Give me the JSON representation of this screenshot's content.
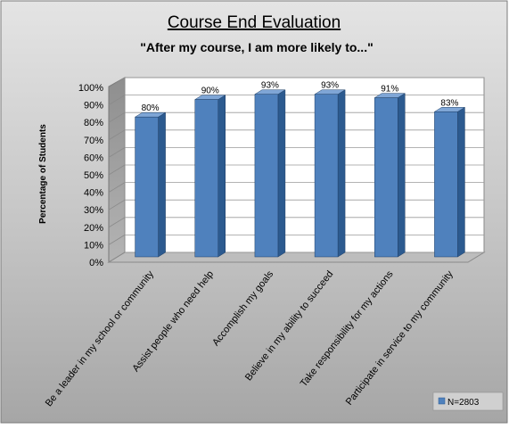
{
  "chart_data": {
    "type": "bar",
    "title": "Course End Evaluation",
    "subtitle": "\"After my course, I am more likely to...\"",
    "xlabel": "",
    "ylabel": "Percentage of Students",
    "ylim": [
      0,
      100
    ],
    "yticks": [
      "0%",
      "10%",
      "20%",
      "30%",
      "40%",
      "50%",
      "60%",
      "70%",
      "80%",
      "90%",
      "100%"
    ],
    "categories": [
      "Be a leader in my school or community",
      "Assist people who need help",
      "Accomplish my goals",
      "Believe in my ability to succeed",
      "Take responsibility for my actions",
      "Participate in service to my community"
    ],
    "values": [
      80,
      90,
      93,
      93,
      91,
      83
    ],
    "data_labels": [
      "80%",
      "90%",
      "93%",
      "93%",
      "91%",
      "83%"
    ],
    "series": [
      {
        "name": "N=2803",
        "values": [
          80,
          90,
          93,
          93,
          91,
          83
        ]
      }
    ],
    "legend": {
      "position": "bottom-right",
      "label": "N=2803"
    },
    "grid": true,
    "colors": {
      "bar_front": "#4f81bd",
      "bar_side": "#2c5a8f",
      "bar_top": "#7fa6d6",
      "plot_background": "#ffffff",
      "chart_background": "#c0c0c0"
    }
  }
}
